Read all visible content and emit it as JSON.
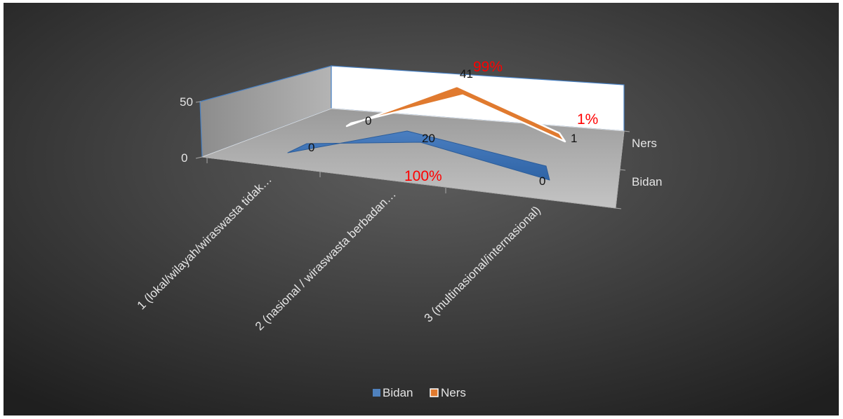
{
  "chart_data": {
    "type": "3d-line",
    "categories": [
      "1 (lokal/wilayah/wiraswasta tidak…",
      "2 (nasional / wiraswasta berbadan…",
      "3 (multinasional/internasional)"
    ],
    "series": [
      {
        "name": "Bidan",
        "values": [
          0,
          20,
          0
        ],
        "color": "#4f81bd"
      },
      {
        "name": "Ners",
        "values": [
          0,
          41,
          1
        ],
        "color": "#e07a2f"
      }
    ],
    "value_axis": {
      "ticks": [
        "0",
        "50"
      ],
      "ylim": [
        0,
        50
      ]
    },
    "depth_axis": {
      "labels": [
        "Ners",
        "Bidan"
      ]
    },
    "annotations": [
      "99%",
      "1%",
      "100%"
    ],
    "annotation_color": "#ff0000",
    "legend": {
      "position": "bottom",
      "items": [
        "Bidan",
        "Ners"
      ]
    },
    "background": "dark-gradient",
    "gridlines": false
  }
}
